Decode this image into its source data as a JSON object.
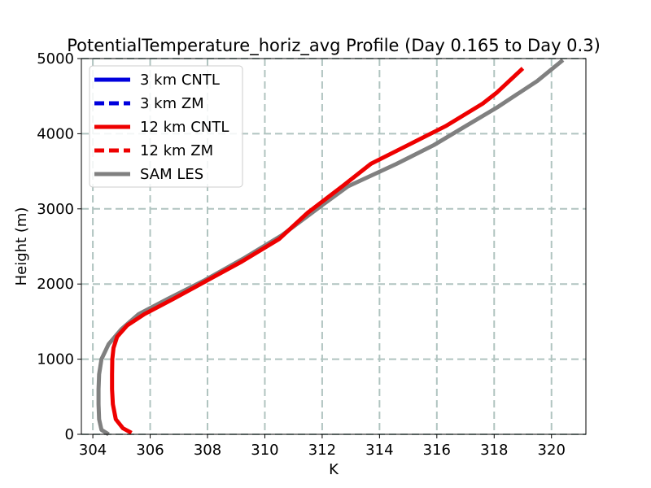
{
  "chart_data": {
    "type": "line",
    "title": "PotentialTemperature_horiz_avg Profile (Day 0.165 to Day 0.3)",
    "xlabel": "K",
    "ylabel": "Height (m)",
    "xlim": [
      303.6,
      321.2
    ],
    "ylim": [
      0,
      5000
    ],
    "xticks": [
      304,
      306,
      308,
      310,
      312,
      314,
      316,
      318,
      320
    ],
    "yticks": [
      0,
      1000,
      2000,
      3000,
      4000,
      5000
    ],
    "grid": true,
    "legend_position": "upper-left",
    "series": [
      {
        "name": "3 km CNTL",
        "color": "#0000dd",
        "linestyle": "solid",
        "x": [],
        "y": []
      },
      {
        "name": "3 km ZM",
        "color": "#0000dd",
        "linestyle": "dashed",
        "x": [],
        "y": []
      },
      {
        "name": "12 km CNTL",
        "color": "#ee0000",
        "linestyle": "solid",
        "x": [
          305.35,
          305.05,
          304.8,
          304.7,
          304.67,
          304.67,
          304.68,
          304.72,
          304.85,
          305.2,
          305.8,
          306.8,
          308.0,
          309.2,
          310.5,
          311.5,
          312.7,
          313.7,
          315.0,
          316.3,
          317.6,
          318.1,
          319.0
        ],
        "y": [
          20,
          80,
          200,
          400,
          600,
          800,
          1000,
          1150,
          1300,
          1450,
          1600,
          1800,
          2050,
          2300,
          2600,
          2950,
          3300,
          3600,
          3850,
          4100,
          4400,
          4550,
          4870
        ]
      },
      {
        "name": "12 km ZM",
        "color": "#ee0000",
        "linestyle": "dashed",
        "x": [],
        "y": []
      },
      {
        "name": "SAM LES",
        "color": "#808080",
        "linestyle": "solid",
        "x": [
          304.55,
          304.3,
          304.22,
          304.2,
          304.2,
          304.22,
          304.3,
          304.55,
          305.0,
          305.6,
          306.6,
          307.9,
          309.3,
          310.6,
          312.0,
          312.9,
          314.6,
          315.9,
          317.0,
          318.1,
          319.5,
          320.4
        ],
        "y": [
          0,
          60,
          200,
          400,
          600,
          800,
          1000,
          1200,
          1400,
          1600,
          1800,
          2050,
          2350,
          2650,
          3050,
          3300,
          3600,
          3850,
          4100,
          4350,
          4700,
          4980
        ]
      }
    ]
  }
}
